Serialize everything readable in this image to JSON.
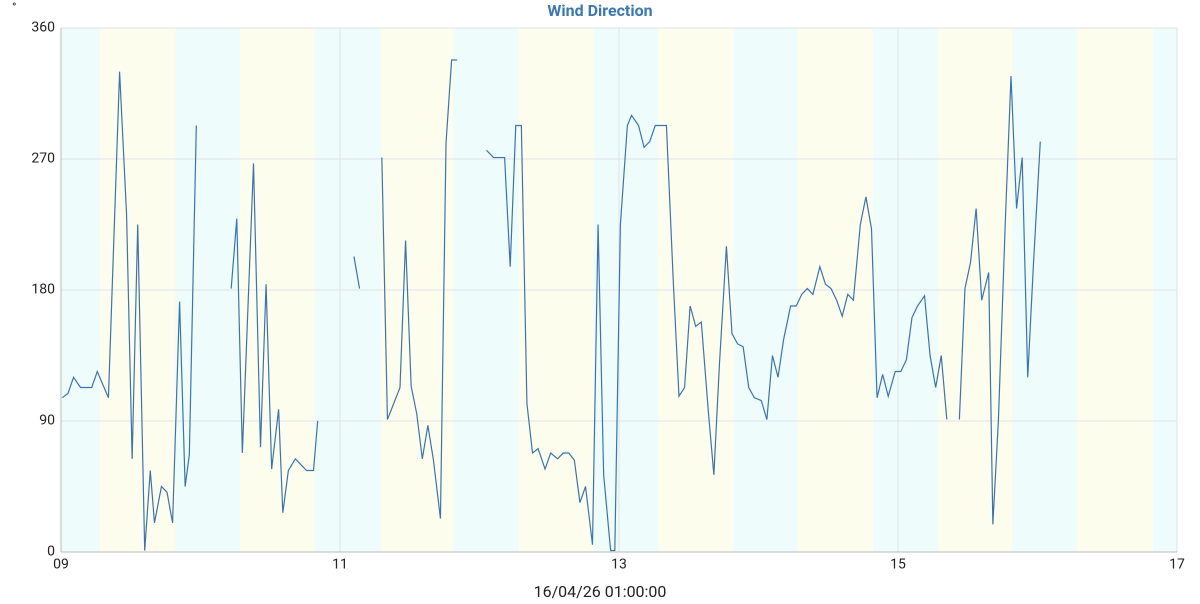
{
  "chart_data": {
    "type": "line",
    "title": "Wind Direction",
    "y_unit": "°",
    "x_label": "16/04/26 01:00:00",
    "xlim": [
      9,
      17
    ],
    "xticks": [
      {
        "value": 9,
        "label": "09"
      },
      11,
      13,
      15,
      17
    ],
    "ylim": [
      0,
      360
    ],
    "yticks": [
      0,
      90,
      180,
      270,
      360
    ],
    "grid": true,
    "night_color": "#effcfc",
    "day_color": "#fdfdee",
    "day_bands": [
      [
        9.28,
        9.82
      ],
      [
        10.28,
        10.82
      ],
      [
        11.29,
        11.81
      ],
      [
        12.28,
        12.82
      ],
      [
        13.28,
        13.82
      ],
      [
        14.28,
        14.82
      ],
      [
        15.29,
        15.82
      ],
      [
        16.28,
        16.83
      ]
    ],
    "series": [
      {
        "name": "Wind Direction",
        "color": "#3a74b0",
        "x": [
          9.01,
          9.05,
          9.09,
          9.14,
          9.22,
          9.26,
          9.3,
          9.34,
          9.42,
          9.47,
          9.51,
          9.55,
          9.6,
          9.64,
          9.67,
          9.72,
          9.76,
          9.8,
          9.85,
          9.89,
          9.92,
          9.97,
          null,
          10.22,
          10.26,
          10.3,
          10.38,
          10.43,
          10.47,
          10.51,
          10.56,
          10.59,
          10.63,
          10.68,
          10.72,
          10.76,
          10.81,
          10.84,
          null,
          11.1,
          11.14,
          null,
          11.3,
          11.34,
          11.43,
          11.47,
          11.51,
          11.55,
          11.59,
          11.63,
          11.67,
          11.72,
          11.76,
          11.8,
          11.84,
          null,
          12.05,
          12.1,
          12.18,
          12.22,
          12.26,
          12.3,
          12.34,
          12.38,
          12.42,
          12.47,
          12.51,
          12.56,
          12.6,
          12.64,
          12.68,
          12.72,
          12.76,
          12.81,
          12.85,
          12.89,
          12.94,
          12.97,
          13.01,
          13.06,
          13.09,
          13.14,
          13.18,
          13.22,
          13.26,
          13.34,
          13.39,
          13.43,
          13.47,
          13.51,
          13.55,
          13.59,
          13.64,
          13.68,
          13.72,
          13.77,
          13.81,
          13.85,
          13.89,
          13.93,
          13.97,
          14.02,
          14.06,
          14.1,
          14.14,
          14.18,
          14.23,
          14.27,
          14.31,
          14.35,
          14.39,
          14.44,
          14.48,
          14.52,
          14.56,
          14.6,
          14.64,
          14.68,
          14.73,
          14.77,
          14.81,
          14.85,
          14.89,
          14.93,
          14.98,
          15.02,
          15.06,
          15.1,
          15.14,
          15.19,
          15.23,
          15.27,
          15.31,
          15.35,
          null,
          15.44,
          15.48,
          15.52,
          15.56,
          15.6,
          15.65,
          15.68,
          15.72,
          15.77,
          15.81,
          15.85,
          15.89,
          15.93,
          15.97,
          16.02
        ],
        "values": [
          106,
          109,
          120,
          113,
          113,
          124,
          115,
          106,
          330,
          232,
          64,
          225,
          1,
          56,
          20,
          45,
          41,
          20,
          172,
          45,
          67,
          293,
          null,
          181,
          229,
          68,
          267,
          72,
          184,
          57,
          98,
          27,
          56,
          64,
          60,
          56,
          56,
          90,
          null,
          203,
          181,
          null,
          271,
          91,
          113,
          214,
          114,
          95,
          64,
          87,
          63,
          23,
          281,
          338,
          338,
          null,
          276,
          271,
          271,
          196,
          293,
          293,
          102,
          68,
          71,
          57,
          68,
          64,
          68,
          68,
          63,
          34,
          45,
          5,
          225,
          53,
          1,
          1,
          225,
          293,
          300,
          293,
          278,
          282,
          293,
          293,
          184,
          107,
          113,
          169,
          155,
          158,
          97,
          53,
          129,
          210,
          150,
          143,
          141,
          113,
          106,
          104,
          91,
          135,
          120,
          146,
          169,
          169,
          177,
          181,
          177,
          196,
          184,
          181,
          173,
          162,
          177,
          173,
          225,
          244,
          222,
          106,
          122,
          107,
          124,
          124,
          132,
          161,
          169,
          176,
          135,
          113,
          135,
          91,
          null,
          91,
          181,
          199,
          236,
          173,
          192,
          19,
          91,
          229,
          327,
          236,
          271,
          120,
          196,
          282
        ]
      }
    ]
  }
}
